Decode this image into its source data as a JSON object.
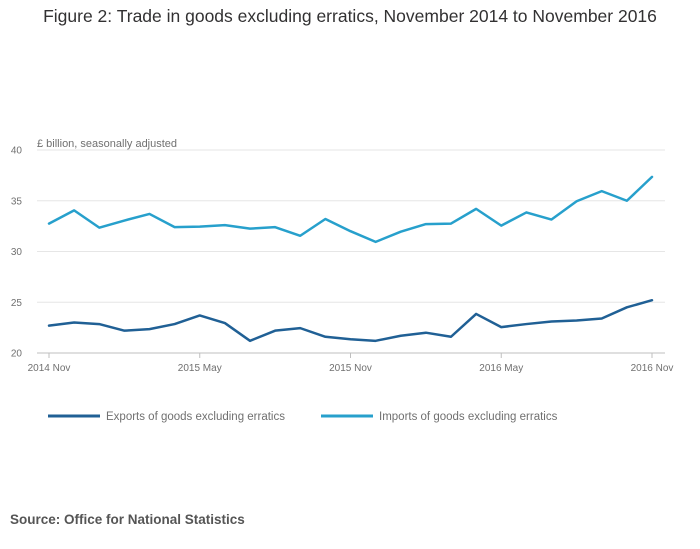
{
  "title": "Figure 2: Trade in goods excluding erratics, November 2014 to November 2016",
  "source": "Source: Office for National Statistics",
  "chart_data": {
    "type": "line",
    "title": "Figure 2: Trade in goods excluding erratics, November 2014 to November 2016",
    "ylabel": "£ billion, seasonally adjusted",
    "xlabel": "",
    "ylim": [
      20,
      40
    ],
    "yticks": [
      20,
      25,
      30,
      35,
      40
    ],
    "grid": true,
    "legend_position": "bottom",
    "x": [
      "Nov 2014",
      "Dec 2014",
      "Jan 2015",
      "Feb 2015",
      "Mar 2015",
      "Apr 2015",
      "May 2015",
      "Jun 2015",
      "Jul 2015",
      "Aug 2015",
      "Sep 2015",
      "Oct 2015",
      "Nov 2015",
      "Dec 2015",
      "Jan 2016",
      "Feb 2016",
      "Mar 2016",
      "Apr 2016",
      "May 2016",
      "Jun 2016",
      "Jul 2016",
      "Aug 2016",
      "Sep 2016",
      "Oct 2016",
      "Nov 2016"
    ],
    "xtick_labels": [
      {
        "index": 0,
        "label": "2014 Nov"
      },
      {
        "index": 6,
        "label": "2015 May"
      },
      {
        "index": 12,
        "label": "2015 Nov"
      },
      {
        "index": 18,
        "label": "2016 May"
      },
      {
        "index": 24,
        "label": "2016 Nov"
      }
    ],
    "series": [
      {
        "name": "Exports of goods excluding erratics",
        "color": "#206095",
        "values": [
          22.7,
          23.0,
          22.85,
          22.2,
          22.35,
          22.85,
          23.7,
          22.95,
          21.2,
          22.2,
          22.45,
          21.6,
          21.35,
          21.2,
          21.7,
          22.0,
          21.6,
          23.85,
          22.55,
          22.85,
          23.1,
          23.2,
          23.4,
          24.5,
          25.2
        ]
      },
      {
        "name": "Imports of goods excluding erratics",
        "color": "#27A0CC",
        "values": [
          32.75,
          34.05,
          32.35,
          33.05,
          33.7,
          32.4,
          32.45,
          32.6,
          32.25,
          32.4,
          31.55,
          33.2,
          32.0,
          30.95,
          31.95,
          32.7,
          32.75,
          34.2,
          32.55,
          33.85,
          33.15,
          34.95,
          35.95,
          35.0,
          37.35
        ]
      }
    ]
  }
}
